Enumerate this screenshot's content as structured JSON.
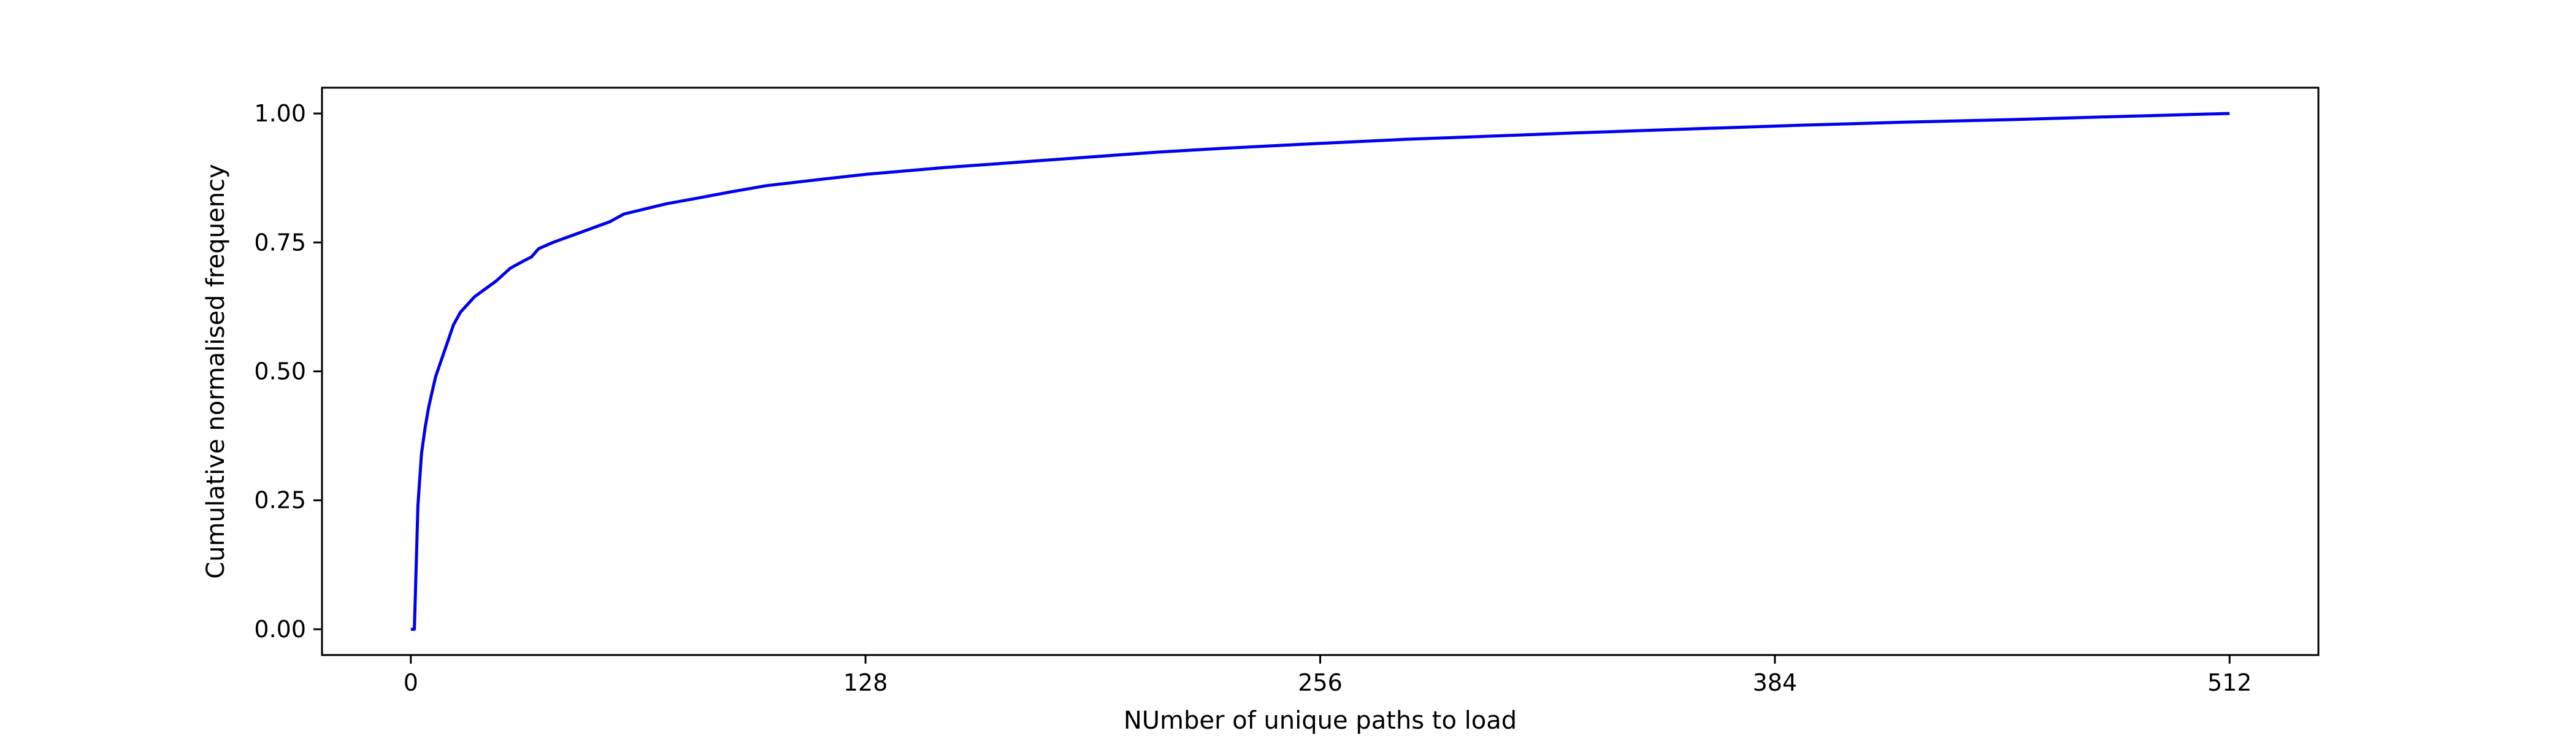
{
  "chart_data": {
    "type": "line",
    "title": "",
    "xlabel": "NUmber of unique paths to load",
    "ylabel": "Cumulative normalised frequency",
    "xlim": [
      -25,
      537
    ],
    "ylim": [
      -0.05,
      1.05
    ],
    "xticks": [
      0,
      128,
      256,
      384,
      512
    ],
    "xtick_labels": [
      "0",
      "128",
      "256",
      "384",
      "512"
    ],
    "yticks": [
      0.0,
      0.25,
      0.5,
      0.75,
      1.0
    ],
    "ytick_labels": [
      "0.00",
      "0.25",
      "0.50",
      "0.75",
      "1.00"
    ],
    "grid": false,
    "legend": "none",
    "series": [
      {
        "color": "#0000ee",
        "x": [
          0,
          1,
          2,
          3,
          4,
          5,
          6,
          7,
          8,
          10,
          12,
          14,
          16,
          18,
          20,
          24,
          28,
          32,
          34,
          36,
          40,
          44,
          48,
          52,
          56,
          60,
          66,
          72,
          80,
          90,
          100,
          115,
          128,
          150,
          170,
          190,
          210,
          230,
          256,
          280,
          300,
          330,
          360,
          390,
          420,
          450,
          480,
          512
        ],
        "y": [
          0.0,
          0.0,
          0.24,
          0.34,
          0.39,
          0.43,
          0.46,
          0.49,
          0.51,
          0.55,
          0.59,
          0.615,
          0.63,
          0.645,
          0.655,
          0.675,
          0.7,
          0.715,
          0.722,
          0.738,
          0.75,
          0.76,
          0.77,
          0.78,
          0.79,
          0.805,
          0.815,
          0.825,
          0.835,
          0.848,
          0.86,
          0.872,
          0.882,
          0.895,
          0.905,
          0.915,
          0.925,
          0.933,
          0.942,
          0.95,
          0.955,
          0.963,
          0.97,
          0.977,
          0.983,
          0.988,
          0.994,
          1.0
        ]
      }
    ]
  }
}
